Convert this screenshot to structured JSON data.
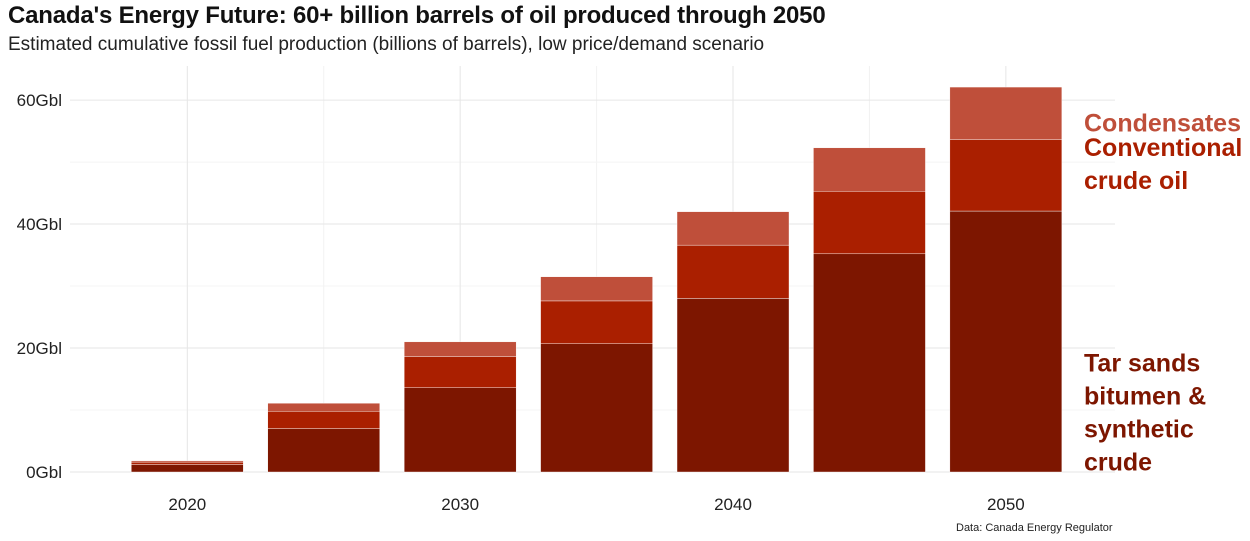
{
  "chart_data": {
    "type": "bar",
    "stacked": true,
    "title": "Canada's Energy Future: 60+ billion barrels of oil produced through 2050",
    "subtitle": "Estimated cumulative fossil fuel production (billions of barrels), low price/demand scenario",
    "caption": "Data: Canada Energy Regulator",
    "x_ticks": [
      "2020",
      "2030",
      "2040",
      "2050"
    ],
    "y_ticks": [
      "0Gbl",
      "20Gbl",
      "40Gbl",
      "60Gbl"
    ],
    "x": [
      2020,
      2025,
      2030,
      2035,
      2040,
      2045,
      2050
    ],
    "xlim": [
      2015.7,
      2054
    ],
    "ylim": [
      0,
      65.5
    ],
    "grid": true,
    "legend": "direct labels at right",
    "series": [
      {
        "name": "Tar sands bitumen & synthetic crude",
        "color": "#7d1600",
        "values": [
          1.2,
          7.0,
          13.6,
          20.7,
          28.0,
          35.2,
          42.1
        ]
      },
      {
        "name": "Conventional crude oil",
        "color": "#aa1f00",
        "values": [
          0.4,
          2.8,
          5.0,
          6.9,
          8.6,
          10.1,
          11.5
        ]
      },
      {
        "name": "Condensates",
        "color": "#bf4f3a",
        "values": [
          0.2,
          1.3,
          2.4,
          3.9,
          5.4,
          7.0,
          8.5
        ]
      }
    ],
    "series_labels": [
      {
        "lines": [
          "Condensates"
        ],
        "color": "#bf4f3a"
      },
      {
        "lines": [
          "Conventional",
          "crude oil"
        ],
        "color": "#aa1f00"
      },
      {
        "lines": [
          "Tar sands",
          "bitumen &",
          "synthetic",
          "crude"
        ],
        "color": "#7d1600"
      }
    ]
  }
}
